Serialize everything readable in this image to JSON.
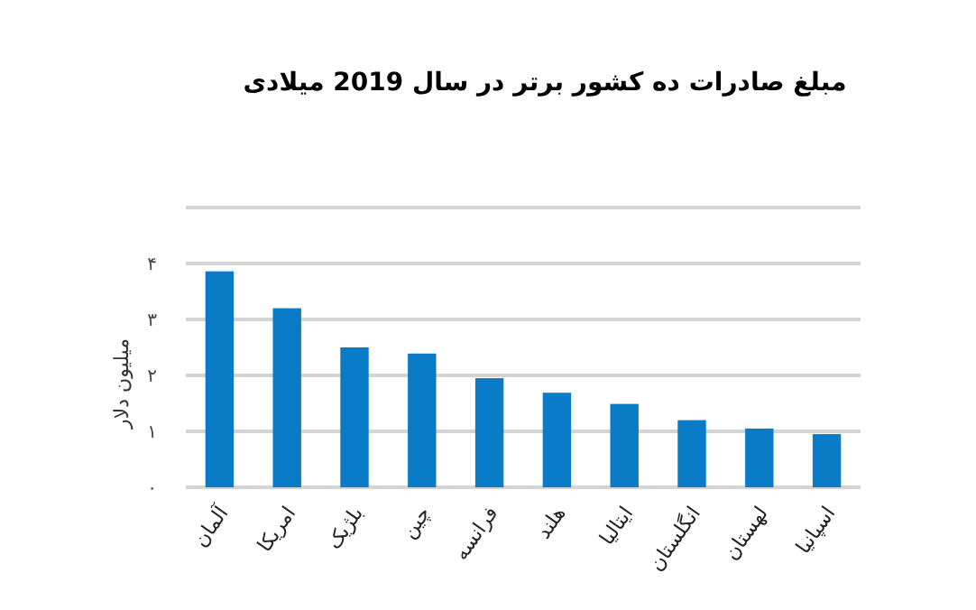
{
  "chart_data": {
    "type": "bar",
    "title": "مبلغ صادرات ده کشور برتر در سال 2019 میلادی",
    "ylabel": "میلیون دلار",
    "categories": [
      "آلمان",
      "امریکا",
      "بلژیک",
      "چین",
      "فرانسه",
      "هلند",
      "ایتالیا",
      "انگلستان",
      "لهستان",
      "اسپانیا"
    ],
    "values": [
      3.86,
      3.2,
      2.5,
      2.39,
      1.95,
      1.69,
      1.49,
      1.2,
      1.05,
      0.95
    ],
    "color": "#0a7bc7",
    "ylim": [
      0,
      5
    ],
    "yticks": [
      {
        "value": 0,
        "label": "۰"
      },
      {
        "value": 1,
        "label": "۱"
      },
      {
        "value": 2,
        "label": "۲"
      },
      {
        "value": 3,
        "label": "۳"
      },
      {
        "value": 4,
        "label": "۴"
      },
      {
        "value": 5,
        "label": null
      }
    ],
    "grid": "y"
  }
}
